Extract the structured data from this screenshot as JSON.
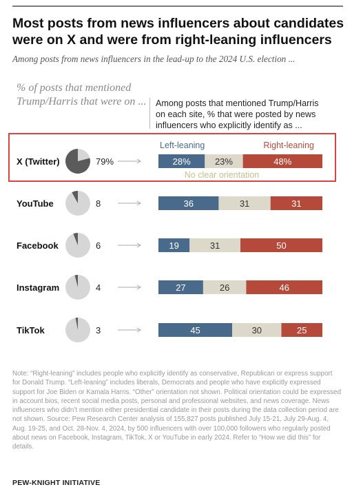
{
  "chart_data": {
    "type": "bar",
    "title": "Most posts from news influencers about candidates were on X and were from right-leaning influencers",
    "subtitle": "Among posts from news influencers in the lead-up to the 2024 U.S. election ...",
    "left_label": "% of posts that mentioned Trump/Harris that were on ...",
    "right_label": "Among posts that mentioned Trump/Harris on each site, % that were posted by news influencers who explicitly identify as ...",
    "legend": {
      "left": "Left-leaning",
      "middle": "No clear orientation",
      "right": "Right-leaning"
    },
    "colors": {
      "left": "#4a6a8c",
      "middle": "#dcd8ca",
      "right": "#b64a3a",
      "pie_share": "#5b5b5b",
      "pie_rest": "#d6d6d6",
      "highlight": "#d9433e",
      "legend_left": "#4a6a8c",
      "legend_middle": "#c6bf8a",
      "legend_right": "#b64a3a"
    },
    "categories": [
      "X (Twitter)",
      "YouTube",
      "Facebook",
      "Instagram",
      "TikTok"
    ],
    "share_labels": [
      "79%",
      "8",
      "6",
      "4",
      "3"
    ],
    "share_values": [
      79,
      8,
      6,
      4,
      3
    ],
    "series": [
      {
        "name": "Left-leaning",
        "values": [
          28,
          36,
          19,
          27,
          45
        ],
        "labels": [
          "28%",
          "36",
          "19",
          "27",
          "45"
        ]
      },
      {
        "name": "No clear orientation",
        "values": [
          23,
          31,
          31,
          26,
          30
        ],
        "labels": [
          "23%",
          "31",
          "31",
          "26",
          "30"
        ]
      },
      {
        "name": "Right-leaning",
        "values": [
          48,
          31,
          50,
          46,
          25
        ],
        "labels": [
          "48%",
          "31",
          "50",
          "46",
          "25"
        ]
      }
    ],
    "highlighted_category": "X (Twitter)"
  },
  "notes": "Note: “Right-leaning” includes people who explicitly identify as conservative, Republican or express support for Donald Trump. “Left-leaning” includes liberals, Democrats and people who have explicitly expressed support for Joe Biden or Kamala Harris. “Other” orientation not shown. Political orientation could be expressed in account bios, recent social media posts, personal and professional websites, and news coverage. News influencers who didn’t mention either presidential candidate in their posts during the data collection period are not shown. Source: Pew Research Center analysis of 155,827 posts published July 15-21, July 29-Aug. 4, Aug. 19-25, and Oct. 28-Nov. 4, 2024, by 500 influencers with over 100,000 followers who regularly posted about news on Facebook, Instagram, TikTok, X or YouTube in early 2024. Refer to “How we did this” for details.",
  "footer": "PEW-KNIGHT INITIATIVE"
}
